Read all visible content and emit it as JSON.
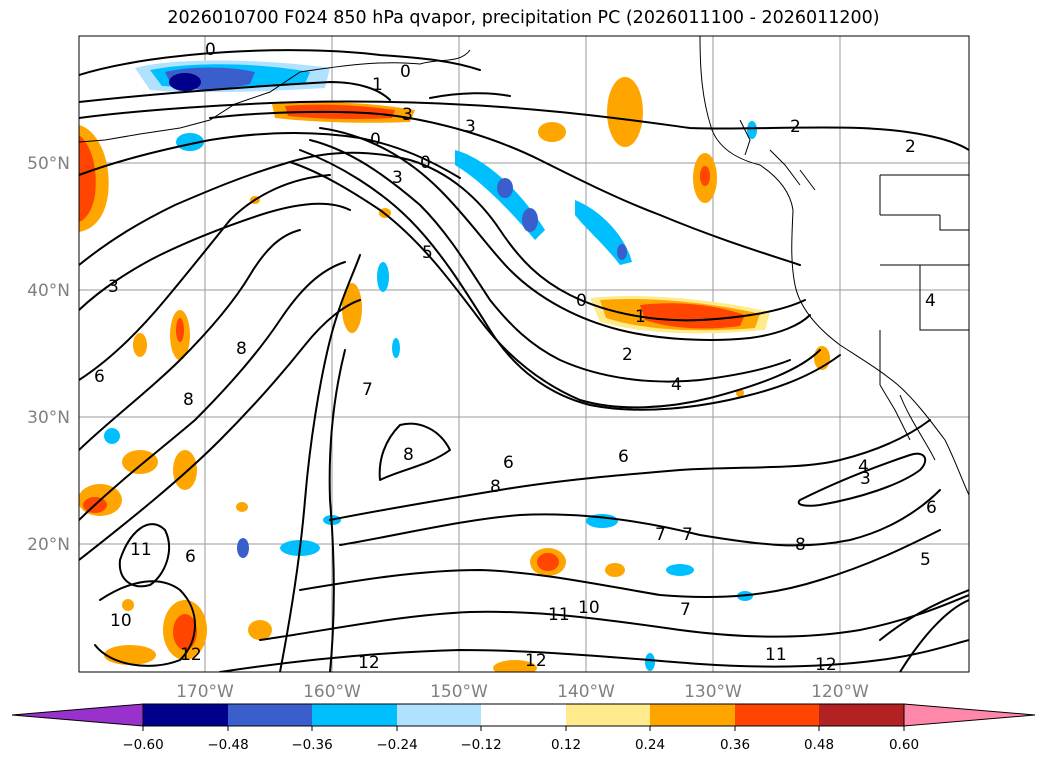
{
  "title": "2026010700 F024 850 hPa qvapor, precipitation PC (2026011100 - 2026011200)",
  "lat_labels": [
    "50°N",
    "40°N",
    "30°N",
    "20°N"
  ],
  "lon_labels": [
    "170°W",
    "160°W",
    "150°W",
    "140°W",
    "130°W",
    "120°W"
  ],
  "colorbar": {
    "ticks": [
      "−0.60",
      "−0.48",
      "−0.36",
      "−0.24",
      "−0.12",
      "0.12",
      "0.24",
      "0.36",
      "0.48",
      "0.60"
    ],
    "colors": [
      "#9932cc",
      "#00008b",
      "#3a5fcd",
      "#00bfff",
      "#b0e2ff",
      "#ffffff",
      "#ffeb8c",
      "#ffa500",
      "#ff4500",
      "#b22222",
      "#ff88aa"
    ]
  },
  "contour_labels": [
    "0",
    "0",
    "0",
    "0",
    "0",
    "1",
    "1",
    "2",
    "2",
    "2",
    "3",
    "3",
    "3",
    "3",
    "3",
    "4",
    "4",
    "4",
    "5",
    "5",
    "6",
    "6",
    "6",
    "6",
    "6",
    "7",
    "7",
    "7",
    "7",
    "8",
    "8",
    "8",
    "8",
    "8",
    "10",
    "10",
    "11",
    "11",
    "11",
    "12",
    "12",
    "12",
    "12"
  ]
}
